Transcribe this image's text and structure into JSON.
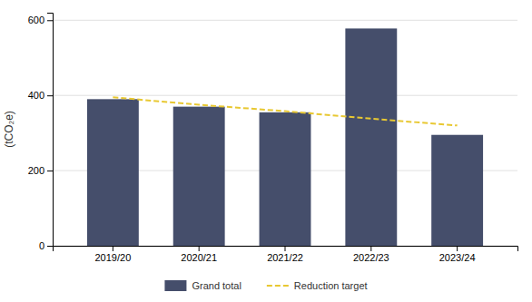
{
  "chart_data": {
    "type": "bar",
    "categories": [
      "2019/20",
      "2020/21",
      "2021/22",
      "2022/23",
      "2023/24"
    ],
    "series": [
      {
        "name": "Grand total",
        "type": "bar",
        "color": "#454e6b",
        "values": [
          390,
          370,
          355,
          578,
          295
        ]
      },
      {
        "name": "Reduction target",
        "type": "line",
        "line_style": "dashed",
        "color": "#e8c832",
        "values": [
          395,
          375,
          358,
          338,
          320
        ]
      }
    ],
    "ylabel": "(tCO₂e)",
    "ylim": [
      0,
      620
    ],
    "yticks": [
      0,
      200,
      400,
      600
    ],
    "grid": true,
    "legend": "bottom"
  }
}
